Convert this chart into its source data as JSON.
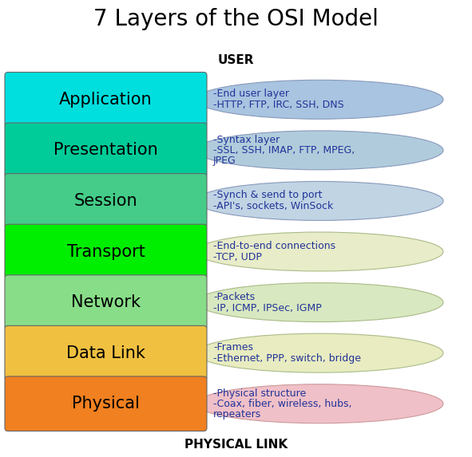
{
  "title": "7 Layers of the OSI Model",
  "top_label": "USER",
  "bottom_label": "PHYSICAL LINK",
  "layers": [
    {
      "name": "Application",
      "box_color": "#00DEDE",
      "ellipse_color": "#A8C4E0",
      "ellipse_edge": "#8899BB",
      "desc_line1": "-End user layer",
      "desc_line2": "-HTTP, FTP, IRC, SSH, DNS",
      "desc_line3": ""
    },
    {
      "name": "Presentation",
      "box_color": "#00CC99",
      "ellipse_color": "#B0CCDC",
      "ellipse_edge": "#8899BB",
      "desc_line1": "-Syntax layer",
      "desc_line2": "-SSL, SSH, IMAP, FTP, MPEG,",
      "desc_line3": "JPEG"
    },
    {
      "name": "Session",
      "box_color": "#44CC88",
      "ellipse_color": "#C0D4E4",
      "ellipse_edge": "#8899BB",
      "desc_line1": "-Synch & send to port",
      "desc_line2": "-API's, sockets, WinSock",
      "desc_line3": ""
    },
    {
      "name": "Transport",
      "box_color": "#00EE00",
      "ellipse_color": "#E8ECC8",
      "ellipse_edge": "#AABB88",
      "desc_line1": "-End-to-end connections",
      "desc_line2": "-TCP, UDP",
      "desc_line3": ""
    },
    {
      "name": "Network",
      "box_color": "#88DD88",
      "ellipse_color": "#D8E8C0",
      "ellipse_edge": "#AABB88",
      "desc_line1": "-Packets",
      "desc_line2": "-IP, ICMP, IPSec, IGMP",
      "desc_line3": ""
    },
    {
      "name": "Data Link",
      "box_color": "#F0C040",
      "ellipse_color": "#E8ECC0",
      "ellipse_edge": "#AABB88",
      "desc_line1": "-Frames",
      "desc_line2": "-Ethernet, PPP, switch, bridge",
      "desc_line3": ""
    },
    {
      "name": "Physical",
      "box_color": "#F08020",
      "ellipse_color": "#F0C0C8",
      "ellipse_edge": "#CC9999",
      "desc_line1": "-Physical structure",
      "desc_line2": "-Coax, fiber, wireless, hubs,",
      "desc_line3": "repeaters"
    }
  ],
  "bg_color": "#FFFFFF",
  "title_fontsize": 20,
  "label_fontsize": 11,
  "layer_name_fontsize": 15,
  "desc_fontsize": 9,
  "desc_color": "#223399",
  "layer_text_color": "#000000"
}
